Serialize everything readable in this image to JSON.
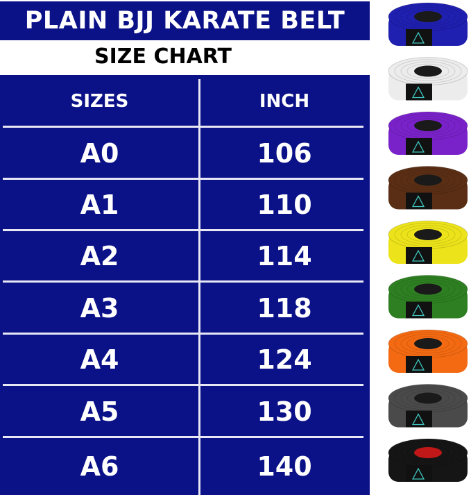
{
  "title": "PLAIN BJJ KARATE BELT",
  "subtitle": "SIZE CHART",
  "colors": {
    "table_blue": "#0b1187",
    "divider": "#e8e8f4"
  },
  "table": {
    "headers": [
      "SIZES",
      "INCH"
    ],
    "rows": [
      [
        "A0",
        "106"
      ],
      [
        "A1",
        "110"
      ],
      [
        "A2",
        "114"
      ],
      [
        "A3",
        "118"
      ],
      [
        "A4",
        "124"
      ],
      [
        "A5",
        "130"
      ],
      [
        "A6",
        "140"
      ]
    ]
  },
  "belts": [
    {
      "color": "blue",
      "hex": "#1f1fb0",
      "core": "#1a1a1a"
    },
    {
      "color": "white",
      "hex": "#ececec",
      "core": "#1a1a1a"
    },
    {
      "color": "purple",
      "hex": "#7a22c9",
      "core": "#1a1a1a"
    },
    {
      "color": "brown",
      "hex": "#5a2e14",
      "core": "#1a1a1a"
    },
    {
      "color": "yellow",
      "hex": "#ece31a",
      "core": "#1a1a1a"
    },
    {
      "color": "green",
      "hex": "#2e7f22",
      "core": "#1a1a1a"
    },
    {
      "color": "orange",
      "hex": "#f46a12",
      "core": "#1a1a1a"
    },
    {
      "color": "grey",
      "hex": "#4a4a4a",
      "core": "#1a1a1a"
    },
    {
      "color": "black",
      "hex": "#151515",
      "core": "#c01818"
    }
  ]
}
